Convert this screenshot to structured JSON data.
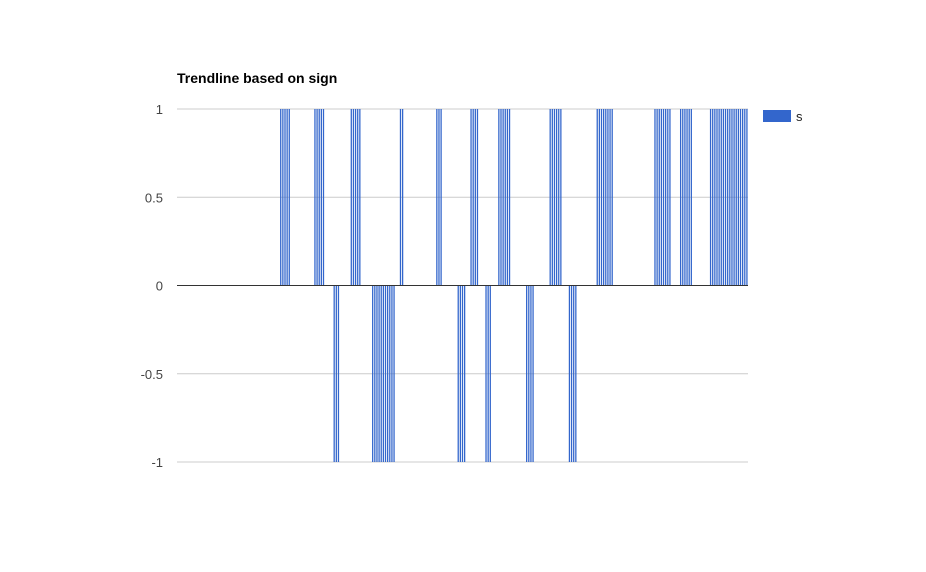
{
  "chart_data": {
    "type": "bar",
    "title": "Trendline based on sign",
    "xlabel": "",
    "ylabel": "",
    "ylim": [
      -1,
      1
    ],
    "yticks": [
      1,
      0.5,
      0,
      -0.5,
      -1
    ],
    "ytick_labels": [
      "1",
      "0.5",
      "0",
      "-0.5",
      "-1"
    ],
    "grid": true,
    "legend_position": "right",
    "series": [
      {
        "name": "s",
        "color": "#3366cc",
        "values": [
          0,
          0,
          0,
          0,
          0,
          0,
          0,
          0,
          0,
          0,
          0,
          0,
          0,
          0,
          0,
          0,
          0,
          0,
          0,
          0,
          0,
          0,
          0,
          0,
          0,
          0,
          0,
          0,
          0,
          0,
          0,
          0,
          0,
          0,
          0,
          0,
          0,
          0,
          0,
          0,
          0,
          0,
          0,
          0,
          0,
          0,
          0,
          0,
          1,
          1,
          1,
          1,
          1,
          0,
          0,
          0,
          0,
          0,
          0,
          0,
          0,
          0,
          0,
          0,
          1,
          1,
          1,
          1,
          1,
          0,
          0,
          0,
          0,
          -1,
          -1,
          -1,
          0,
          0,
          0,
          0,
          0,
          1,
          1,
          1,
          1,
          1,
          0,
          0,
          0,
          0,
          0,
          -1,
          -1,
          -1,
          -1,
          -1,
          -1,
          -1,
          -1,
          -1,
          -1,
          -1,
          0,
          0,
          1,
          1,
          0,
          0,
          0,
          0,
          0,
          0,
          0,
          0,
          0,
          0,
          0,
          0,
          0,
          0,
          0,
          1,
          1,
          1,
          0,
          0,
          0,
          0,
          0,
          0,
          0,
          -1,
          -1,
          -1,
          -1,
          0,
          0,
          1,
          1,
          1,
          1,
          0,
          0,
          0,
          -1,
          -1,
          -1,
          0,
          0,
          0,
          1,
          1,
          1,
          1,
          1,
          1,
          0,
          0,
          0,
          0,
          0,
          0,
          0,
          -1,
          -1,
          -1,
          -1,
          0,
          0,
          0,
          0,
          0,
          0,
          0,
          1,
          1,
          1,
          1,
          1,
          1,
          0,
          0,
          0,
          -1,
          -1,
          -1,
          -1,
          0,
          0,
          0,
          0,
          0,
          0,
          0,
          0,
          0,
          1,
          1,
          1,
          1,
          1,
          1,
          1,
          1,
          0,
          0,
          0,
          0,
          0,
          0,
          0,
          0,
          0,
          0,
          0,
          0,
          0,
          0,
          0,
          0,
          0,
          0,
          0,
          1,
          1,
          1,
          1,
          1,
          1,
          1,
          1,
          0,
          0,
          0,
          0,
          1,
          1,
          1,
          1,
          1,
          1,
          0,
          0,
          0,
          0,
          0,
          0,
          0,
          0,
          1,
          1,
          1,
          1,
          1,
          1,
          1,
          1,
          1,
          1,
          1,
          1,
          1,
          1,
          1,
          1,
          1,
          1
        ]
      }
    ]
  }
}
